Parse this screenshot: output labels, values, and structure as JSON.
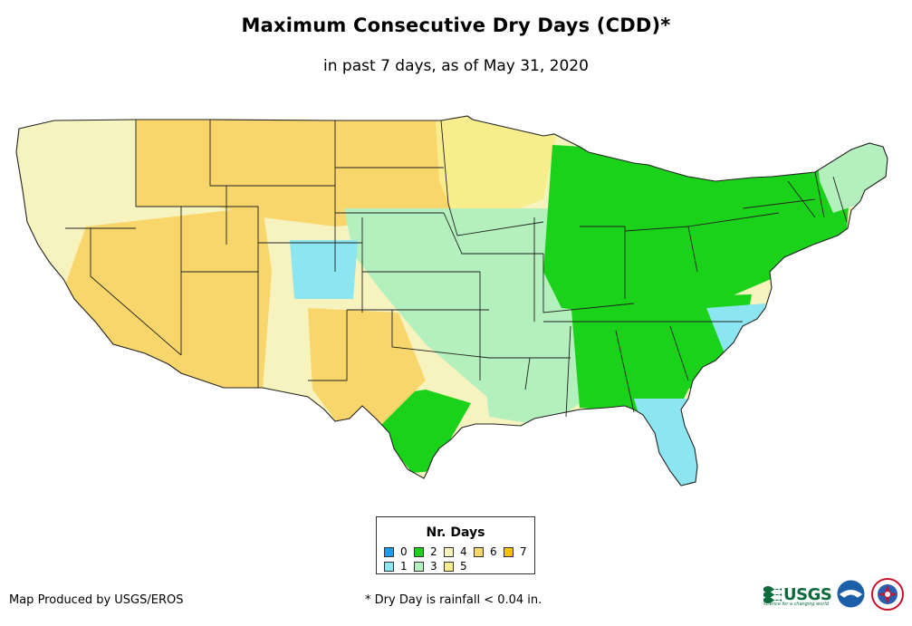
{
  "title": "Maximum Consecutive Dry Days (CDD)*",
  "subtitle": "in past 7 days, as of May 31, 2020",
  "legend": {
    "title": "Nr. Days",
    "items": [
      {
        "label": "0",
        "color": "#1e9ae8"
      },
      {
        "label": "1",
        "color": "#8ce6f2"
      },
      {
        "label": "2",
        "color": "#19d219"
      },
      {
        "label": "3",
        "color": "#b4f0be"
      },
      {
        "label": "4",
        "color": "#f7f3be"
      },
      {
        "label": "5",
        "color": "#f7ed8c"
      },
      {
        "label": "6",
        "color": "#f9d66b"
      },
      {
        "label": "7",
        "color": "#f6c200"
      }
    ]
  },
  "credit": "Map Produced by USGS/EROS",
  "footnote": "* Dry Day is rainfall < 0.04 in.",
  "logos": {
    "usgs": {
      "text": "USGS",
      "tagline": "science for a changing world"
    },
    "noaa": {
      "text": "noaa"
    },
    "nws": {
      "name": "National Weather Service"
    }
  },
  "regions": {
    "west_coast": "4",
    "southwest_great_basin": "6",
    "northern_plains": "6",
    "upper_midwest": "5",
    "central_plains": "3",
    "lower_mississippi": "3",
    "ohio_valley": "2",
    "southeast": "2",
    "northeast": "2",
    "new_england": "3",
    "florida_peninsula": "1",
    "carolina_coast": "1",
    "gulf_coast_texas": "2",
    "colorado_rockies": "1",
    "west_texas": "6"
  }
}
